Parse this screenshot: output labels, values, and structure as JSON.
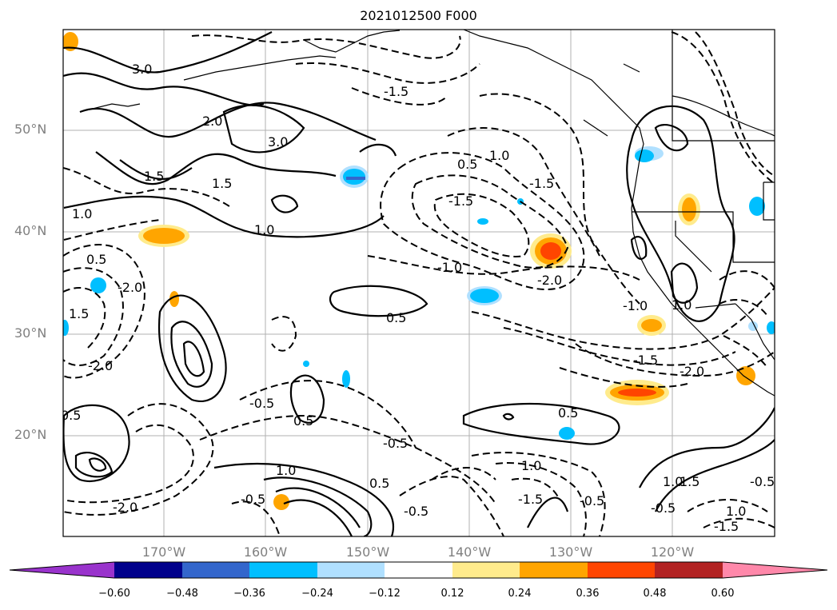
{
  "title": "2021012500 F000",
  "lat_labels": [
    "50°N",
    "40°N",
    "30°N",
    "20°N"
  ],
  "lon_labels": [
    "170°W",
    "160°W",
    "150°W",
    "140°W",
    "130°W",
    "120°W"
  ],
  "colorbar": {
    "ticks": [
      "−0.60",
      "−0.48",
      "−0.36",
      "−0.24",
      "−0.12",
      "0.12",
      "0.24",
      "0.36",
      "0.48",
      "0.60"
    ],
    "colors": [
      "#9933cc",
      "#00008b",
      "#3366cc",
      "#00bfff",
      "#b0e0ff",
      "#ffffff",
      "#ffeb8c",
      "#ffa500",
      "#ff4500",
      "#b22222",
      "#ff88aa"
    ]
  },
  "contour_labels": [
    "3.0",
    "2.0",
    "3.0",
    "1.5",
    "1.5",
    "1.0",
    "1.0",
    "-2.0",
    "-1.5",
    "0.5",
    "1.0",
    "-1.5",
    "-1.5",
    "-1.0",
    "-2.0",
    "0.5",
    "-1.0",
    "1.0",
    "-1.5",
    "-2.0",
    "0.5",
    "0.5",
    "0.5",
    "0.5",
    "1.0",
    "1.5",
    "0.5",
    "-0.5",
    "1.0",
    "1.5",
    "1.0",
    "-1.5",
    "-0.5",
    "-0.5",
    "-0.5",
    "-0.5",
    "-0.5",
    "-0.5",
    "-2.0",
    "-2.0",
    "1.0",
    "-1.5"
  ]
}
